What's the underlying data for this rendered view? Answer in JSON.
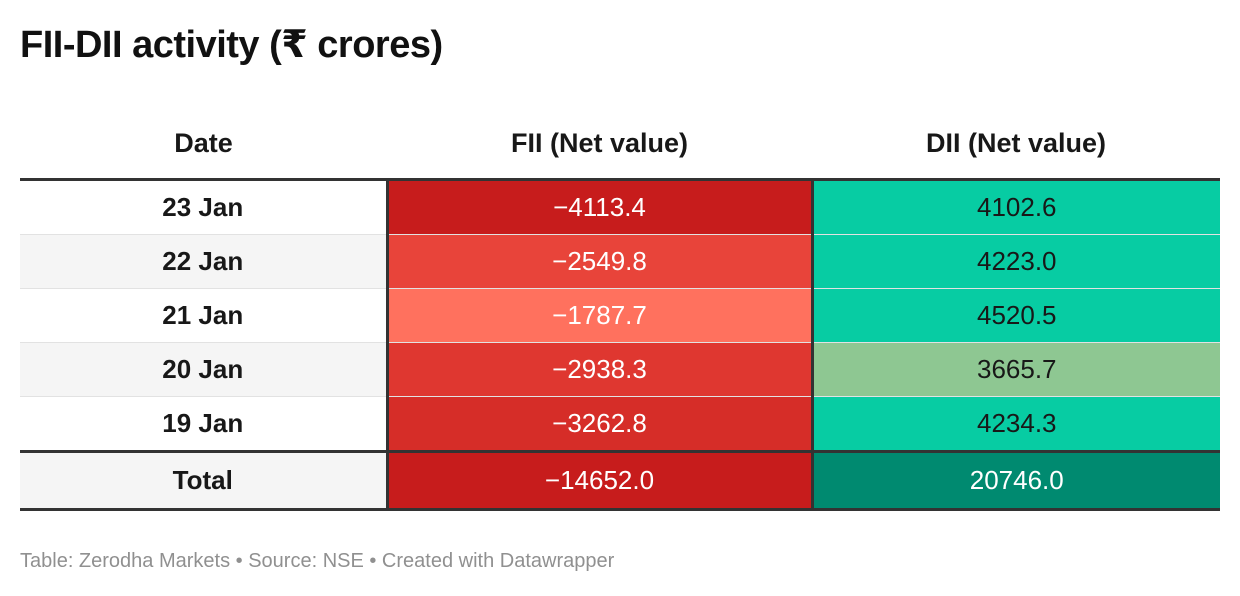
{
  "title": "FII-DII activity (₹ crores)",
  "chart_data": {
    "type": "table",
    "title": "FII-DII activity (₹ crores)",
    "columns": [
      "Date",
      "FII (Net value)",
      "DII (Net value)"
    ],
    "rows": [
      {
        "date": "23 Jan",
        "fii": "−4113.4",
        "dii": "4102.6",
        "fii_color": "#c71c1c",
        "dii_color": "#07cca3"
      },
      {
        "date": "22 Jan",
        "fii": "−2549.8",
        "dii": "4223.0",
        "fii_color": "#e8443a",
        "dii_color": "#07cca3"
      },
      {
        "date": "21 Jan",
        "fii": "−1787.7",
        "dii": "4520.5",
        "fii_color": "#ff715e",
        "dii_color": "#07cca3"
      },
      {
        "date": "20 Jan",
        "fii": "−2938.3",
        "dii": "3665.7",
        "fii_color": "#df3730",
        "dii_color": "#8ec792"
      },
      {
        "date": "19 Jan",
        "fii": "−3262.8",
        "dii": "4234.3",
        "fii_color": "#d62d28",
        "dii_color": "#07cca3"
      }
    ],
    "total": {
      "date": "Total",
      "fii": "−14652.0",
      "dii": "20746.0",
      "fii_color": "#c71c1c",
      "dii_color": "#008a70"
    }
  },
  "colors": {
    "light_text": "#181818",
    "dark_text": "#ffffff"
  },
  "footer": "Table: Zerodha Markets • Source: NSE • Created with Datawrapper"
}
